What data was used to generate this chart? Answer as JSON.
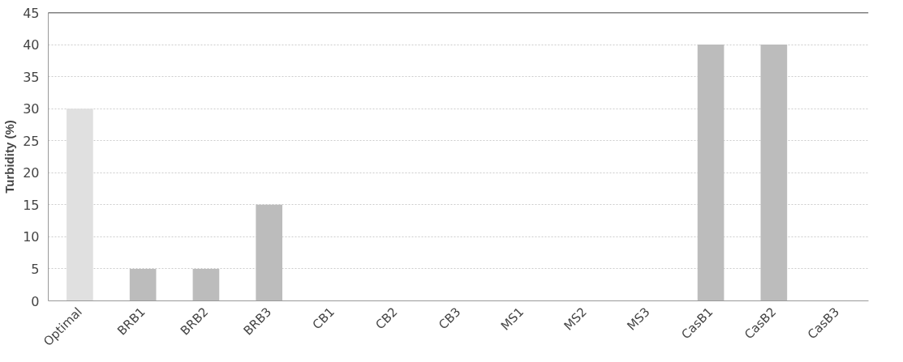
{
  "chart_data": {
    "type": "bar",
    "ylabel": "Turbidity (%)",
    "categories": [
      "Optimal",
      "BRB1",
      "BRB2",
      "BRB3",
      "CB1",
      "CB2",
      "CB3",
      "MS1",
      "MS2",
      "MS3",
      "CasB1",
      "CasB2",
      "CasB3"
    ],
    "values": [
      30,
      5,
      5,
      15,
      0,
      0,
      0,
      0,
      0,
      0,
      40,
      40,
      0
    ],
    "colors": [
      "#e0e0e0",
      "#bcbcbc",
      "#bcbcbc",
      "#bcbcbc",
      "#bcbcbc",
      "#bcbcbc",
      "#bcbcbc",
      "#bcbcbc",
      "#bcbcbc",
      "#bcbcbc",
      "#bcbcbc",
      "#bcbcbc",
      "#bcbcbc"
    ],
    "ylim": [
      0,
      45
    ],
    "yticks": [
      0,
      5,
      10,
      15,
      20,
      25,
      30,
      35,
      40,
      45
    ],
    "grid": "y"
  }
}
